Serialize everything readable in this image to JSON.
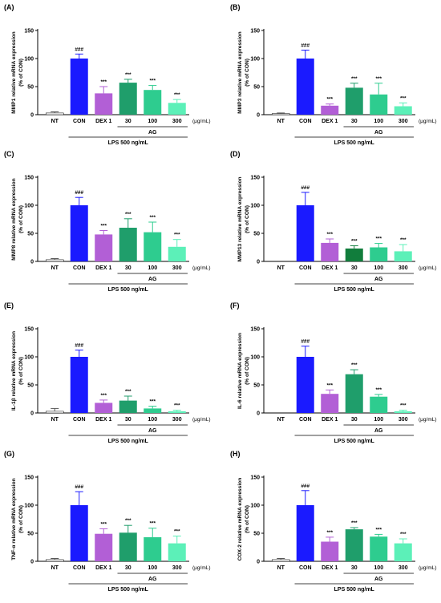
{
  "figure": {
    "bar_colors": [
      "#ffffff",
      "#1a1aff",
      "#b25fd6",
      "#1f9e6b",
      "#2ecc8f",
      "#5cf0b8"
    ],
    "bar_colors_alt": [
      "#ffffff",
      "#1a1aff",
      "#b25fd6",
      "#117d3c",
      "#2ecc8f",
      "#5cf0b8"
    ],
    "ylabel_suffix": "(% of CON)",
    "unit": "(μg/mL)",
    "group_label": "AG",
    "treatment_label": "LPS 500 ng/mL"
  },
  "chart_data": [
    {
      "panel": "(A)",
      "type": "bar",
      "ylabel": "MMP1 relative mRNA expression",
      "categories": [
        "NT",
        "CON",
        "DEX 1",
        "30",
        "100",
        "300"
      ],
      "values": [
        3,
        100,
        38,
        57,
        44,
        21
      ],
      "errors": [
        2,
        8,
        12,
        6,
        8,
        6
      ],
      "annotations": [
        "",
        "###",
        "***",
        "***",
        "***",
        "***"
      ],
      "ylim": [
        0,
        150
      ],
      "yticks": [
        0,
        50,
        100,
        150
      ],
      "alt_colors": false
    },
    {
      "panel": "(B)",
      "type": "bar",
      "ylabel": "MMP3 relative mRNA expression",
      "categories": [
        "NT",
        "CON",
        "DEX 1",
        "30",
        "100",
        "300"
      ],
      "values": [
        2,
        100,
        16,
        48,
        36,
        15
      ],
      "errors": [
        1,
        15,
        3,
        8,
        20,
        6
      ],
      "annotations": [
        "",
        "###",
        "***",
        "***",
        "***",
        "***"
      ],
      "ylim": [
        0,
        150
      ],
      "yticks": [
        0,
        50,
        100,
        150
      ],
      "alt_colors": false
    },
    {
      "panel": "(C)",
      "type": "bar",
      "ylabel": "MMP8 relative mRNA expression",
      "categories": [
        "NT",
        "CON",
        "DEX 1",
        "30",
        "100",
        "300"
      ],
      "values": [
        3,
        100,
        48,
        60,
        52,
        26
      ],
      "errors": [
        2,
        14,
        7,
        16,
        18,
        13
      ],
      "annotations": [
        "",
        "###",
        "***",
        "***",
        "***",
        "***"
      ],
      "ylim": [
        0,
        150
      ],
      "yticks": [
        0,
        50,
        100,
        150
      ],
      "alt_colors": false
    },
    {
      "panel": "(D)",
      "type": "bar",
      "ylabel": "MMP13 relative mRNA expression",
      "categories": [
        "NT",
        "CON",
        "DEX 1",
        "30",
        "100",
        "300"
      ],
      "values": [
        0,
        100,
        33,
        23,
        25,
        18
      ],
      "errors": [
        0,
        23,
        7,
        5,
        7,
        12
      ],
      "annotations": [
        "",
        "###",
        "***",
        "***",
        "***",
        "***"
      ],
      "ylim": [
        0,
        150
      ],
      "yticks": [
        0,
        50,
        100,
        150
      ],
      "alt_colors": true
    },
    {
      "panel": "(E)",
      "type": "bar",
      "ylabel": "IL-1β relative mRNA expression",
      "categories": [
        "NT",
        "CON",
        "DEX 1",
        "30",
        "100",
        "300"
      ],
      "values": [
        3,
        100,
        18,
        22,
        8,
        3
      ],
      "errors": [
        5,
        12,
        5,
        8,
        4,
        2
      ],
      "annotations": [
        "",
        "###",
        "***",
        "***",
        "***",
        "***"
      ],
      "ylim": [
        0,
        150
      ],
      "yticks": [
        0,
        50,
        100,
        150
      ],
      "alt_colors": false
    },
    {
      "panel": "(F)",
      "type": "bar",
      "ylabel": "IL-6 relative mRNA expression",
      "categories": [
        "NT",
        "CON",
        "DEX 1",
        "30",
        "100",
        "300"
      ],
      "values": [
        0,
        100,
        34,
        69,
        29,
        3
      ],
      "errors": [
        0,
        19,
        7,
        8,
        4,
        2
      ],
      "annotations": [
        "",
        "###",
        "***",
        "***",
        "***",
        "***"
      ],
      "ylim": [
        0,
        150
      ],
      "yticks": [
        0,
        50,
        100,
        150
      ],
      "alt_colors": false
    },
    {
      "panel": "(G)",
      "type": "bar",
      "ylabel": "TNF-α relative mRNA expression",
      "categories": [
        "NT",
        "CON",
        "DEX 1",
        "30",
        "100",
        "300"
      ],
      "values": [
        3,
        100,
        49,
        51,
        43,
        32
      ],
      "errors": [
        2,
        24,
        9,
        13,
        16,
        13
      ],
      "annotations": [
        "",
        "###",
        "***",
        "***",
        "***",
        "***"
      ],
      "ylim": [
        0,
        150
      ],
      "yticks": [
        0,
        50,
        100,
        150
      ],
      "alt_colors": false
    },
    {
      "panel": "(H)",
      "type": "bar",
      "ylabel": "COX-2 relative mRNA expression",
      "categories": [
        "NT",
        "CON",
        "DEX 1",
        "30",
        "100",
        "300"
      ],
      "values": [
        3,
        100,
        35,
        57,
        44,
        32
      ],
      "errors": [
        2,
        26,
        8,
        3,
        4,
        8
      ],
      "annotations": [
        "",
        "###",
        "***",
        "***",
        "***",
        "***"
      ],
      "ylim": [
        0,
        150
      ],
      "yticks": [
        0,
        50,
        100,
        150
      ],
      "alt_colors": false
    }
  ]
}
